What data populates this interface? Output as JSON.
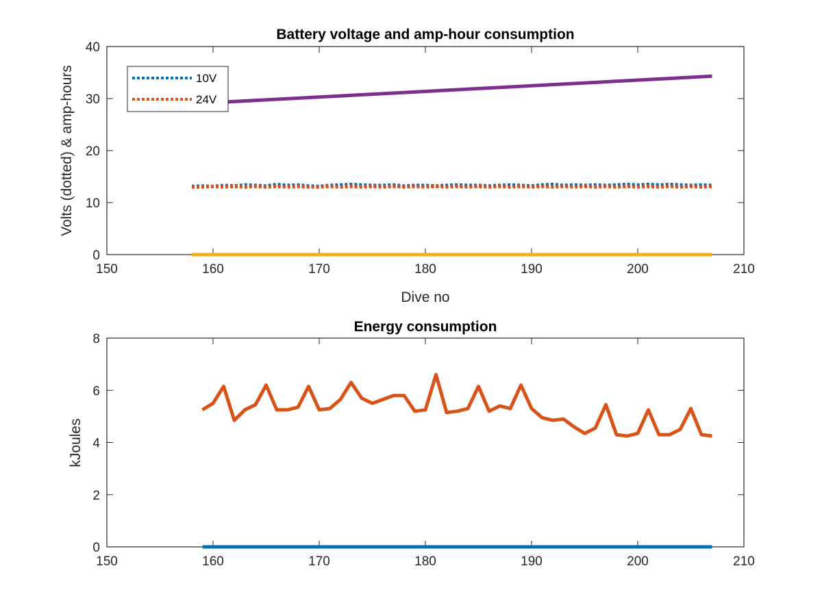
{
  "colors": {
    "blue": "#0072BD",
    "orange": "#D95319",
    "yellow": "#EDB120",
    "purple": "#7E2F8E",
    "axis": "#262626"
  },
  "chart_data": [
    {
      "type": "line",
      "title": "Battery voltage and amp-hour consumption",
      "xlabel": "Dive no",
      "ylabel": "Volts (dotted) & amp-hours",
      "xlim": [
        150,
        210
      ],
      "ylim": [
        0,
        40
      ],
      "xticks": [
        150,
        160,
        170,
        180,
        190,
        200,
        210
      ],
      "yticks": [
        0,
        10,
        20,
        30,
        40
      ],
      "grid": false,
      "legend": {
        "placement": "top-left",
        "entries": [
          "10V",
          "24V"
        ]
      },
      "series": [
        {
          "name": "10V",
          "style": "dotted",
          "color": "#0072BD",
          "x": [
            158,
            159,
            160,
            161,
            162,
            163,
            164,
            165,
            166,
            167,
            168,
            169,
            170,
            171,
            172,
            173,
            174,
            175,
            176,
            177,
            178,
            179,
            180,
            181,
            182,
            183,
            184,
            185,
            186,
            187,
            188,
            189,
            190,
            191,
            192,
            193,
            194,
            195,
            196,
            197,
            198,
            199,
            200,
            201,
            202,
            203,
            204,
            205,
            206,
            207
          ],
          "values": [
            13.1,
            13.2,
            13.1,
            13.3,
            13.2,
            13.4,
            13.3,
            13.2,
            13.5,
            13.3,
            13.4,
            13.2,
            13.1,
            13.3,
            13.4,
            13.5,
            13.4,
            13.3,
            13.3,
            13.4,
            13.2,
            13.3,
            13.3,
            13.2,
            13.3,
            13.4,
            13.3,
            13.3,
            13.2,
            13.3,
            13.4,
            13.3,
            13.2,
            13.4,
            13.5,
            13.3,
            13.4,
            13.3,
            13.4,
            13.3,
            13.4,
            13.5,
            13.4,
            13.5,
            13.4,
            13.5,
            13.4,
            13.3,
            13.4,
            13.3
          ]
        },
        {
          "name": "24V",
          "style": "dotted",
          "color": "#D95319",
          "x": [
            158,
            159,
            160,
            161,
            162,
            163,
            164,
            165,
            166,
            167,
            168,
            169,
            170,
            171,
            172,
            173,
            174,
            175,
            176,
            177,
            178,
            179,
            180,
            181,
            182,
            183,
            184,
            185,
            186,
            187,
            188,
            189,
            190,
            191,
            192,
            193,
            194,
            195,
            196,
            197,
            198,
            199,
            200,
            201,
            202,
            203,
            204,
            205,
            206,
            207
          ],
          "values": [
            13.0,
            13.0,
            13.1,
            13.0,
            13.1,
            13.0,
            13.1,
            13.0,
            13.1,
            13.0,
            13.1,
            13.0,
            13.0,
            13.1,
            13.0,
            13.1,
            13.0,
            13.1,
            13.0,
            13.1,
            13.0,
            13.1,
            13.0,
            13.1,
            13.0,
            13.1,
            13.0,
            13.1,
            13.0,
            13.1,
            13.0,
            13.1,
            13.0,
            13.1,
            13.0,
            13.1,
            13.0,
            13.1,
            13.0,
            13.1,
            13.0,
            13.1,
            13.0,
            13.1,
            13.0,
            13.1,
            13.0,
            13.1,
            13.0,
            13.1
          ]
        },
        {
          "style": "solid",
          "color": "#EDB120",
          "x": [
            158,
            207
          ],
          "values": [
            0,
            0
          ]
        },
        {
          "style": "solid",
          "color": "#7E2F8E",
          "x": [
            158,
            207
          ],
          "values": [
            29.0,
            34.3
          ]
        }
      ]
    },
    {
      "type": "line",
      "title": "Energy consumption",
      "xlabel": "",
      "ylabel": "kJoules",
      "xlim": [
        150,
        210
      ],
      "ylim": [
        0,
        8
      ],
      "xticks": [
        150,
        160,
        170,
        180,
        190,
        200,
        210
      ],
      "yticks": [
        0,
        2,
        4,
        6,
        8
      ],
      "grid": false,
      "series": [
        {
          "style": "solid",
          "color": "#0072BD",
          "x": [
            159,
            207
          ],
          "values": [
            0,
            0
          ]
        },
        {
          "style": "solid",
          "color": "#D95319",
          "x": [
            159,
            160,
            161,
            162,
            163,
            164,
            165,
            166,
            167,
            168,
            169,
            170,
            171,
            172,
            173,
            174,
            175,
            176,
            177,
            178,
            179,
            180,
            181,
            182,
            183,
            184,
            185,
            186,
            187,
            188,
            189,
            190,
            191,
            192,
            193,
            194,
            195,
            196,
            197,
            198,
            199,
            200,
            201,
            202,
            203,
            204,
            205,
            206,
            207
          ],
          "values": [
            5.25,
            5.5,
            6.15,
            4.85,
            5.25,
            5.45,
            6.2,
            5.25,
            5.25,
            5.35,
            6.15,
            5.25,
            5.3,
            5.65,
            6.3,
            5.7,
            5.5,
            5.65,
            5.8,
            5.8,
            5.2,
            5.25,
            6.6,
            5.15,
            5.2,
            5.3,
            6.15,
            5.2,
            5.4,
            5.3,
            6.2,
            5.3,
            4.95,
            4.85,
            4.9,
            4.6,
            4.35,
            4.55,
            5.45,
            4.3,
            4.25,
            4.35,
            5.25,
            4.3,
            4.3,
            4.5,
            5.3,
            4.3,
            4.25
          ]
        }
      ]
    }
  ]
}
